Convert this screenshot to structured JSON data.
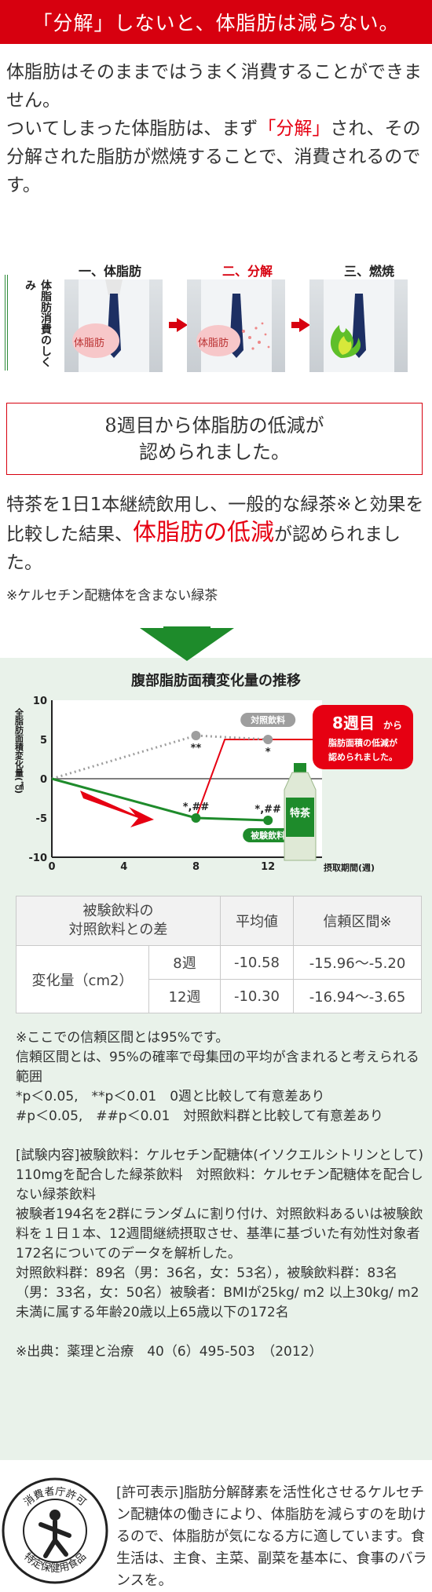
{
  "header": {
    "title": "「分解」しないと、体脂肪は減らない。"
  },
  "intro": {
    "p1": "体脂肪はそのままではうまく消費することができません。",
    "p2_a": "ついてしまった体脂肪は、まず",
    "p2_red": "「分解」",
    "p2_b": "され、その分解された脂肪が燃焼することで、消費されるのです。"
  },
  "mechanism": {
    "side_label": "体脂肪消費のしくみ",
    "stages": [
      {
        "title": "一、体脂肪",
        "badge": "体脂肪"
      },
      {
        "title": "二、分解",
        "badge": "体脂肪"
      },
      {
        "title": "三、燃焼",
        "badge": ""
      }
    ]
  },
  "headline_box": {
    "line1": "8週目から体脂肪の低減が",
    "line2": "認められました。"
  },
  "result": {
    "text_a": "特茶を1日1本継続飲用し、一般的な緑茶※と効果を比較した結果、",
    "text_red": "体脂肪の低減",
    "text_b": "が認められました。",
    "note": "※ケルセチン配糖体を含まない緑茶"
  },
  "chart_data": {
    "type": "line",
    "title": "腹部脂肪面積変化量の推移",
    "ylabel": "全脂肪面積変化量(㎠)",
    "xlabel": "摂取期間(週)",
    "x": [
      0,
      8,
      12
    ],
    "xticks": [
      0,
      4,
      8,
      12
    ],
    "yticks": [
      10,
      5,
      0,
      -5,
      -10
    ],
    "ylim": [
      -10,
      10
    ],
    "xlim": [
      0,
      15
    ],
    "series": [
      {
        "name": "対照飲料",
        "values": [
          0,
          5.5,
          5.0
        ],
        "color": "#9e9e9e",
        "style": "dotted",
        "marks": [
          "",
          "**",
          "*"
        ]
      },
      {
        "name": "被験飲料",
        "values": [
          0,
          -5.0,
          -5.3
        ],
        "color": "#1e8b2b",
        "style": "solid",
        "marks": [
          "",
          "*,##",
          "*,##"
        ]
      }
    ],
    "callout": {
      "big": "8週目",
      "small": "から",
      "line2": "脂肪面積の低減が",
      "line3": "認められました。"
    },
    "product_label": "特茶"
  },
  "table": {
    "header": [
      "被験飲料の\n対照飲料との差",
      "平均値",
      "信頼区間※"
    ],
    "row_label": "変化量（cm2）",
    "rows": [
      {
        "week": "8週",
        "mean": "-10.58",
        "ci": "-15.96〜-5.20"
      },
      {
        "week": "12週",
        "mean": "-10.30",
        "ci": "-16.94〜-3.65"
      }
    ]
  },
  "notes": {
    "n1": "※ここでの信頼区間とは95%です。",
    "n2": "信頼区間とは、95%の確率で母集団の平均が含まれると考えられる範囲",
    "n3": "*p＜0.05,　**p＜0.01　0週と比較して有意差あり",
    "n4": "#p＜0.05,　##p＜0.01　対照飲料群と比較して有意差あり",
    "n5": "[試験内容]被験飲料：ケルセチン配糖体(イソクエルシトリンとして) 110mgを配合した緑茶飲料　対照飲料：ケルセチン配糖体を配合しない緑茶飲料",
    "n6": "被験者194名を2群にランダムに割り付け、対照飲料あるいは被験飲料を１日１本、12週間継続摂取させ、基準に基づいた有効性対象者172名についてのデータを解析した。",
    "n7": "対照飲料群：89名（男：36名，女：53名），被験飲料群：83名（男：33名，女：50名）被験者：BMIが25kg/ m2 以上30kg/ m2 未満に属する年齢20歳以上65歳以下の172名",
    "n8": "※出典：薬理と治療　40（6）495-503　（2012）"
  },
  "tokuho": {
    "ring_top": "消費者庁許可",
    "ring_bottom": "特定保健用食品",
    "text": "[許可表示]脂肪分解酵素を活性化させるケルセチン配糖体の働きにより、体脂肪を減らすのを助けるので、体脂肪が気になる方に適しています。食生活は、主食、主菜、副菜を基本に、食事のバランスを。"
  },
  "colors": {
    "red": "#d7000f",
    "green": "#1e8b2b",
    "bg_green": "#e9f2ea"
  }
}
